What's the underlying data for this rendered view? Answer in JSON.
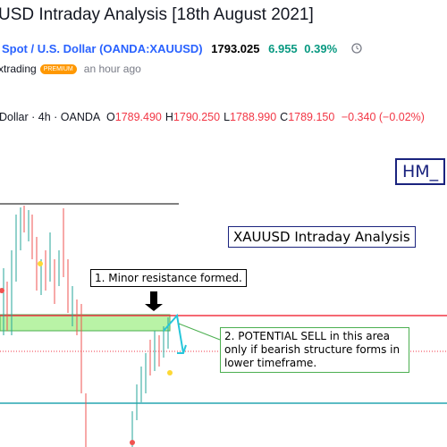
{
  "idea": {
    "title": "USD Intraday Analysis [18th August 2021]",
    "symbol": {
      "name": "Spot / U.S. Dollar",
      "ticker": "(OANDA:XAUUSD)",
      "price": "1793.025",
      "change": "6.955",
      "change_pct": "0.39%"
    },
    "author": {
      "name": "xtrading",
      "badge": "PREMIUM",
      "time": "an hour ago"
    }
  },
  "chart": {
    "header": "Dollar · 4h · OANDA",
    "ohlc": [
      {
        "label": "O",
        "value": "1789.490"
      },
      {
        "label": "H",
        "value": "1790.250"
      },
      {
        "label": "L",
        "value": "1788.990"
      },
      {
        "label": "C",
        "value": "1789.150"
      }
    ],
    "change": "−0.340 (−0.02%)",
    "annotations": {
      "signature": "HM_",
      "heading": "XAUUSD Intraday Analysis",
      "note1": "1. Minor resistance formed.",
      "note2": "2. POTENTIAL SELL in this area only if bearish structure forms in lower timeframe."
    }
  }
}
